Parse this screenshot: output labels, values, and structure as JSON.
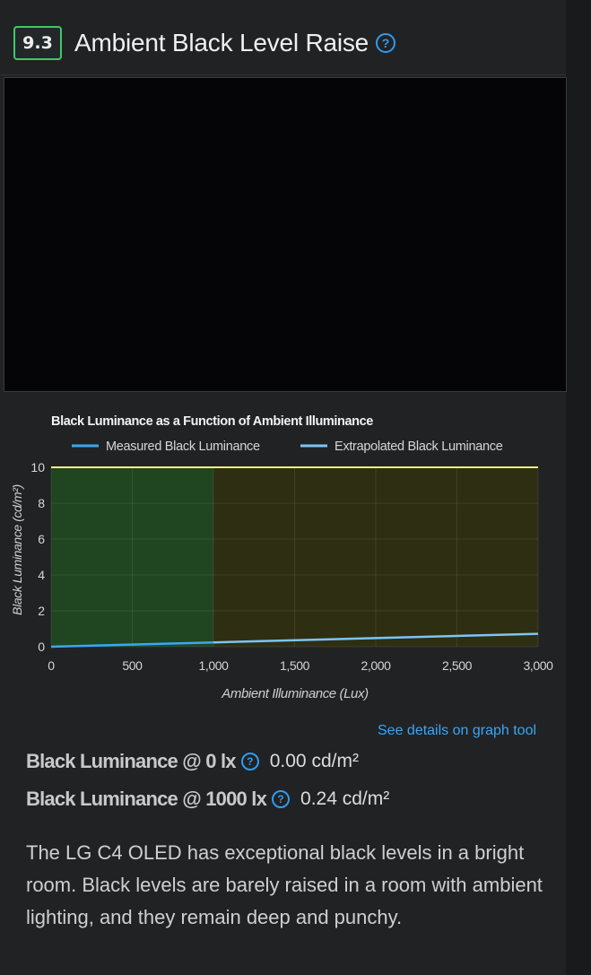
{
  "header": {
    "score": "9.3",
    "title": "Ambient Black Level Raise"
  },
  "chart_data": {
    "type": "line",
    "title": "Black Luminance as a Function of Ambient Illuminance",
    "xlabel": "Ambient Illuminance (Lux)",
    "ylabel": "Black Luminance (cd/m²)",
    "xlim": [
      0,
      3000
    ],
    "ylim": [
      0,
      10
    ],
    "x_ticks": [
      "0",
      "500",
      "1,000",
      "1,500",
      "2,000",
      "2,500",
      "3,000"
    ],
    "y_ticks": [
      "0",
      "2",
      "4",
      "6",
      "8",
      "10"
    ],
    "grid": true,
    "legend": "top",
    "shaded_regions": [
      {
        "x0": 0,
        "x1": 1000,
        "color": "#1f4620"
      },
      {
        "x0": 1000,
        "x1": 3000,
        "color": "#2e2e12"
      }
    ],
    "threshold_line": {
      "y": 10,
      "color": "#f2f28c"
    },
    "series": [
      {
        "name": "Measured Black Luminance",
        "color": "#3aa6f4",
        "x": [
          0,
          1000
        ],
        "y": [
          0.0,
          0.24
        ]
      },
      {
        "name": "Extrapolated Black Luminance",
        "color": "#7cc4f8",
        "x": [
          1000,
          3000
        ],
        "y": [
          0.24,
          0.72
        ]
      }
    ]
  },
  "link": {
    "label": "See details on graph tool"
  },
  "stats": [
    {
      "label": "Black Luminance @ 0 lx",
      "value": "0.00 cd/m²"
    },
    {
      "label": "Black Luminance @ 1000 lx",
      "value": "0.24 cd/m²"
    }
  ],
  "description": "The LG C4 OLED has exceptional black levels in a bright room. Black levels are barely raised in a room with ambient lighting, and they remain deep and punchy.",
  "icons": {
    "help": "question-circle-icon"
  }
}
